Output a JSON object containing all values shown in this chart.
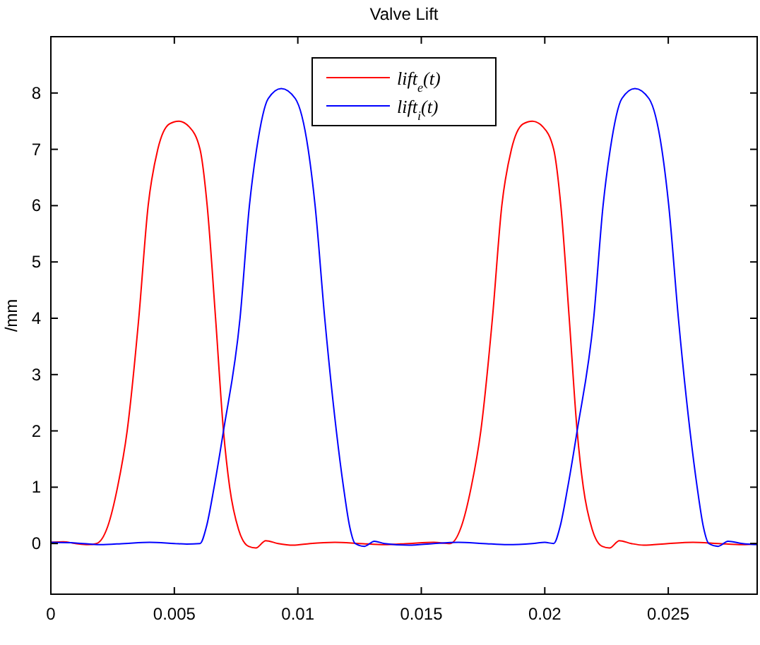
{
  "chart_data": {
    "type": "line",
    "title": "Valve Lift",
    "ylabel": "/mm",
    "xlim": [
      0,
      0.0286
    ],
    "ylim": [
      -0.9,
      9
    ],
    "xticks": [
      0,
      0.005,
      0.01,
      0.015,
      0.02,
      0.025
    ],
    "yticks": [
      0,
      1,
      2,
      3,
      4,
      5,
      6,
      7,
      8
    ],
    "legend": "top",
    "grid": false,
    "marker": "none",
    "line_style": "solid",
    "series": [
      {
        "name": "lift$_{e}$(t)",
        "color": "#ff0000",
        "x": [
          0,
          0.0005,
          0.001,
          0.0015,
          0.00185,
          0.0023,
          0.0027,
          0.00309,
          0.00356,
          0.00394,
          0.00433,
          0.0048,
          0.00518,
          0.0056,
          0.00604,
          0.00633,
          0.00667,
          0.00699,
          0.00724,
          0.0076,
          0.008,
          0.0083,
          0.0087,
          0.0092,
          0.0098,
          0.0105,
          0.0115,
          0.0125,
          0.0135,
          0.0145,
          0.0155,
          0.01617,
          0.01662,
          0.01702,
          0.01741,
          0.01788,
          0.01826,
          0.01865,
          0.01912,
          0.0195,
          0.01992,
          0.02036,
          0.02065,
          0.02099,
          0.02131,
          0.02156,
          0.02192,
          0.02232,
          0.02262,
          0.02302,
          0.0235,
          0.024,
          0.025,
          0.026,
          0.027,
          0.028,
          0.0286
        ],
        "values": [
          0.02,
          0.03,
          0,
          -0.02,
          0,
          0.3,
          1,
          2,
          4,
          6,
          7,
          7.45,
          7.5,
          7.4,
          7,
          6,
          4,
          2,
          1,
          0.25,
          -0.05,
          -0.08,
          0.05,
          0,
          -0.03,
          0,
          0.02,
          0,
          -0.02,
          0,
          0.02,
          0,
          0.3,
          1,
          2,
          4,
          6,
          7,
          7.45,
          7.5,
          7.4,
          7,
          6,
          4,
          2,
          1,
          0.25,
          -0.05,
          -0.08,
          0.05,
          0,
          -0.03,
          0,
          0.02,
          0,
          -0.02,
          0
        ]
      },
      {
        "name": "lift$_{i}$(t)",
        "color": "#0000ff",
        "x": [
          0,
          0.001,
          0.002,
          0.003,
          0.004,
          0.005,
          0.0055,
          0.00604,
          0.0063,
          0.00661,
          0.00699,
          0.00766,
          0.00804,
          0.00833,
          0.0088,
          0.00933,
          0.0099,
          0.01042,
          0.0107,
          0.01109,
          0.01156,
          0.01185,
          0.0121,
          0.01232,
          0.0127,
          0.0131,
          0.0135,
          0.0145,
          0.0155,
          0.0165,
          0.0175,
          0.0185,
          0.0195,
          0.02,
          0.02036,
          0.02062,
          0.02093,
          0.02131,
          0.02198,
          0.02236,
          0.02265,
          0.02312,
          0.02365,
          0.02422,
          0.02474,
          0.02502,
          0.02541,
          0.02588,
          0.02617,
          0.02642,
          0.02664,
          0.02702,
          0.02742,
          0.028,
          0.0286
        ],
        "values": [
          0.02,
          0.01,
          -0.02,
          0,
          0.02,
          0,
          -0.01,
          0,
          0.3,
          1,
          2,
          4,
          6,
          7,
          7.9,
          8.08,
          7.9,
          7,
          6,
          4,
          2,
          1,
          0.3,
          0,
          -0.05,
          0.04,
          0,
          -0.03,
          0,
          0.02,
          0,
          -0.02,
          0,
          0.02,
          0,
          0.3,
          1,
          2,
          4,
          6,
          7,
          7.9,
          8.08,
          7.9,
          7,
          6,
          4,
          2,
          1,
          0.3,
          0,
          -0.05,
          0.04,
          0,
          -0.02
        ]
      }
    ]
  }
}
